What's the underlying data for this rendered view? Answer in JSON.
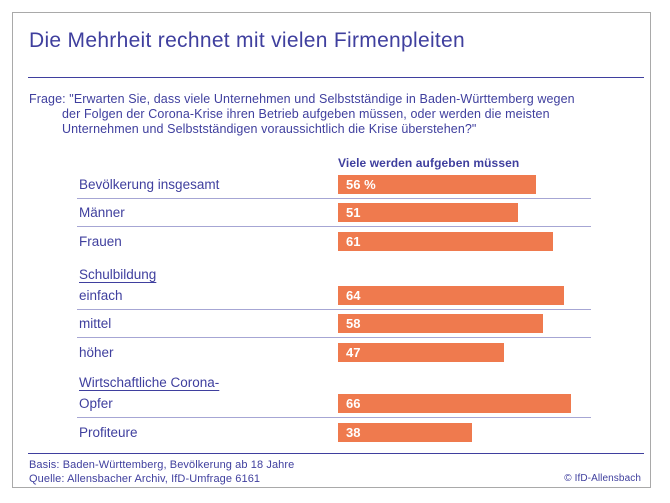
{
  "title": "Die Mehrheit rechnet mit vielen Firmenpleiten",
  "question": {
    "lines": [
      "Frage: \"Erwarten Sie, dass viele Unternehmen und Selbstständige in Baden-Württemberg wegen",
      "der Folgen der Corona-Krise ihren Betrieb aufgeben müssen, oder werden die meisten",
      "Unternehmen und Selbstständigen voraussichtlich die Krise überstehen?\""
    ]
  },
  "chart_data": {
    "type": "bar",
    "orientation": "horizontal",
    "title": "Die Mehrheit rechnet mit vielen Firmenpleiten",
    "value_column_header": "Viele werden aufgeben müssen",
    "unit": "percent",
    "xlim": [
      0,
      70
    ],
    "categories": [
      "Bevölkerung insgesamt",
      "Männer",
      "Frauen",
      "einfach",
      "mittel",
      "höher",
      "Opfer",
      "Profiteure"
    ],
    "values": [
      56,
      51,
      61,
      64,
      58,
      47,
      66,
      38
    ],
    "value_labels": [
      "56 %",
      "51",
      "61",
      "64",
      "58",
      "47",
      "66",
      "38"
    ],
    "sections": [
      {
        "label": "Schulbildung",
        "rows": [
          "einfach",
          "mittel",
          "höher"
        ]
      },
      {
        "label": "Wirtschaftliche Corona-",
        "rows": [
          "Opfer",
          "Profiteure"
        ]
      }
    ],
    "legend_position": "none",
    "grid": false
  },
  "footer": {
    "basis": "Basis: Baden-Württemberg, Bevölkerung ab 18 Jahre",
    "quelle": "Quelle: Allensbacher Archiv, IfD-Umfrage 6161",
    "copyright": "© IfD-Allensbach"
  },
  "colors": {
    "text_blue": "#3f3f9e",
    "bar_orange": "#ef7a4e",
    "separator": "#a6a6d4",
    "frame_border": "#a9a9a9"
  }
}
